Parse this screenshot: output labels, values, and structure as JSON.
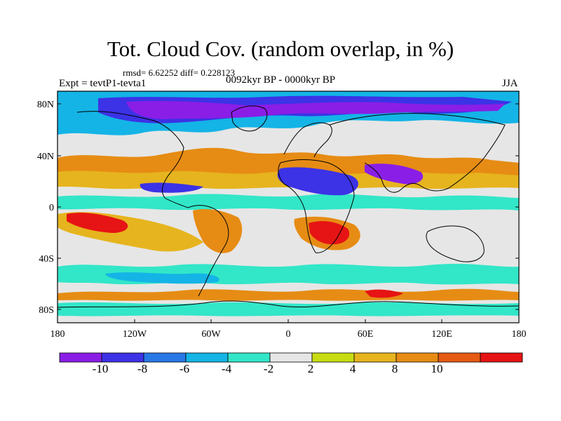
{
  "title": "Tot. Cloud Cov. (random overlap, in %)",
  "stats": "rmsd= 6.62252 diff= 0.228123",
  "experiment": "Expt = tevtP1-tevta1",
  "period": "0092kyr BP - 0000kyr BP",
  "season": "JJA",
  "lat_labels": [
    "80N",
    "40N",
    "0",
    "40S",
    "80S"
  ],
  "lon_labels": [
    "180",
    "120W",
    "60W",
    "0",
    "60E",
    "120E",
    "180"
  ],
  "colorbar": {
    "colors": [
      "#8a1ee6",
      "#3c32e6",
      "#2878e6",
      "#14b4e6",
      "#32e6c8",
      "#e6e6e6",
      "#c8dc14",
      "#e6b41e",
      "#e68c14",
      "#e65a14",
      "#e61414"
    ],
    "labels": [
      "-10",
      "-8",
      "-6",
      "-4",
      "-2",
      "2",
      "4",
      "8",
      "10"
    ]
  },
  "palette": {
    "strong_decrease": "#8a1ee6",
    "decrease": "#3c32e6",
    "moderate_decrease": "#2878e6",
    "weak_decrease": "#14b4e6",
    "slight_decrease": "#32e6c8",
    "neutral": "#e6e6e6",
    "slight_increase": "#c8dc14",
    "increase": "#e6b41e",
    "moderate_increase": "#e68c14",
    "strong_increase": "#e65a14",
    "very_strong_increase": "#e61414"
  }
}
